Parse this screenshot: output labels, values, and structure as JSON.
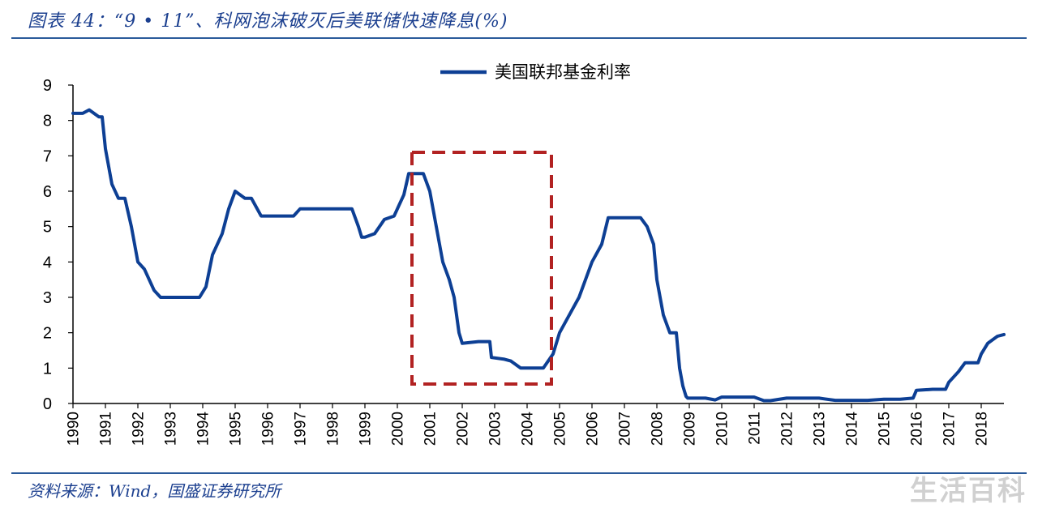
{
  "figure": {
    "title": "图表 44：“9 • 11”、科网泡沫破灭后美联储快速降息(%)",
    "source": "资料来源：Wind，国盛证券研究所",
    "watermark": "生活百科"
  },
  "colors": {
    "series": "#0d3f94",
    "highlight_box": "#b22222",
    "rule": "#2a5a9a",
    "title_text": "#1b3f8f"
  },
  "chart_data": {
    "type": "line",
    "title": "",
    "xlabel": "",
    "ylabel": "",
    "xlim": [
      1990,
      2018.7
    ],
    "ylim": [
      0,
      9
    ],
    "x_ticks": [
      "1990",
      "1991",
      "1992",
      "1993",
      "1994",
      "1995",
      "1996",
      "1997",
      "1998",
      "1999",
      "2000",
      "2001",
      "2002",
      "2003",
      "2004",
      "2005",
      "2006",
      "2007",
      "2008",
      "2009",
      "2010",
      "2011",
      "2012",
      "2013",
      "2014",
      "2015",
      "2016",
      "2017",
      "2018"
    ],
    "y_ticks": [
      "0",
      "1",
      "2",
      "3",
      "4",
      "5",
      "6",
      "7",
      "8",
      "9"
    ],
    "grid": false,
    "legend_position": "top-center",
    "series": [
      {
        "name": "美国联邦基金利率",
        "x": [
          1990.0,
          1990.3,
          1990.5,
          1990.8,
          1990.9,
          1991.0,
          1991.2,
          1991.4,
          1991.6,
          1991.8,
          1992.0,
          1992.2,
          1992.5,
          1992.7,
          1993.0,
          1993.3,
          1993.6,
          1993.9,
          1994.1,
          1994.3,
          1994.6,
          1994.8,
          1995.0,
          1995.3,
          1995.5,
          1995.8,
          1996.0,
          1996.3,
          1996.5,
          1996.8,
          1997.0,
          1997.2,
          1997.5,
          1997.8,
          1998.0,
          1998.3,
          1998.6,
          1998.8,
          1998.9,
          1999.0,
          1999.3,
          1999.6,
          1999.9,
          2000.0,
          2000.2,
          2000.35,
          2000.5,
          2000.8,
          2001.0,
          2001.2,
          2001.4,
          2001.6,
          2001.75,
          2001.9,
          2002.0,
          2002.5,
          2002.85,
          2002.9,
          2003.3,
          2003.5,
          2003.8,
          2004.3,
          2004.5,
          2004.8,
          2005.0,
          2005.3,
          2005.6,
          2005.8,
          2006.0,
          2006.3,
          2006.5,
          2007.5,
          2007.7,
          2007.9,
          2008.0,
          2008.1,
          2008.2,
          2008.4,
          2008.6,
          2008.7,
          2008.8,
          2008.9,
          2008.95,
          2009.0,
          2009.5,
          2009.8,
          2010.0,
          2010.5,
          2011.0,
          2011.3,
          2011.5,
          2012.0,
          2012.5,
          2013.0,
          2013.5,
          2014.0,
          2014.5,
          2015.0,
          2015.5,
          2015.9,
          2016.0,
          2016.5,
          2016.9,
          2017.0,
          2017.3,
          2017.5,
          2017.9,
          2018.0,
          2018.2,
          2018.5,
          2018.7
        ],
        "values": [
          8.2,
          8.2,
          8.3,
          8.1,
          8.1,
          7.2,
          6.2,
          5.8,
          5.8,
          5.0,
          4.0,
          3.8,
          3.2,
          3.0,
          3.0,
          3.0,
          3.0,
          3.0,
          3.3,
          4.2,
          4.8,
          5.5,
          6.0,
          5.8,
          5.8,
          5.3,
          5.3,
          5.3,
          5.3,
          5.3,
          5.5,
          5.5,
          5.5,
          5.5,
          5.5,
          5.5,
          5.5,
          5.0,
          4.7,
          4.7,
          4.8,
          5.2,
          5.3,
          5.5,
          5.9,
          6.5,
          6.5,
          6.5,
          6.0,
          5.0,
          4.0,
          3.5,
          3.0,
          2.0,
          1.7,
          1.75,
          1.75,
          1.3,
          1.25,
          1.2,
          1.0,
          1.0,
          1.0,
          1.4,
          2.0,
          2.5,
          3.0,
          3.5,
          4.0,
          4.5,
          5.25,
          5.25,
          5.0,
          4.5,
          3.5,
          3.0,
          2.5,
          2.0,
          2.0,
          1.0,
          0.5,
          0.2,
          0.15,
          0.15,
          0.15,
          0.1,
          0.18,
          0.18,
          0.18,
          0.08,
          0.08,
          0.15,
          0.15,
          0.15,
          0.09,
          0.09,
          0.09,
          0.12,
          0.12,
          0.15,
          0.37,
          0.4,
          0.4,
          0.6,
          0.9,
          1.15,
          1.15,
          1.4,
          1.7,
          1.9,
          1.95
        ]
      }
    ],
    "annotations": [
      {
        "type": "dashed-box",
        "x_range": [
          2000.45,
          2004.75
        ],
        "y_range": [
          0.55,
          7.1
        ]
      }
    ]
  }
}
